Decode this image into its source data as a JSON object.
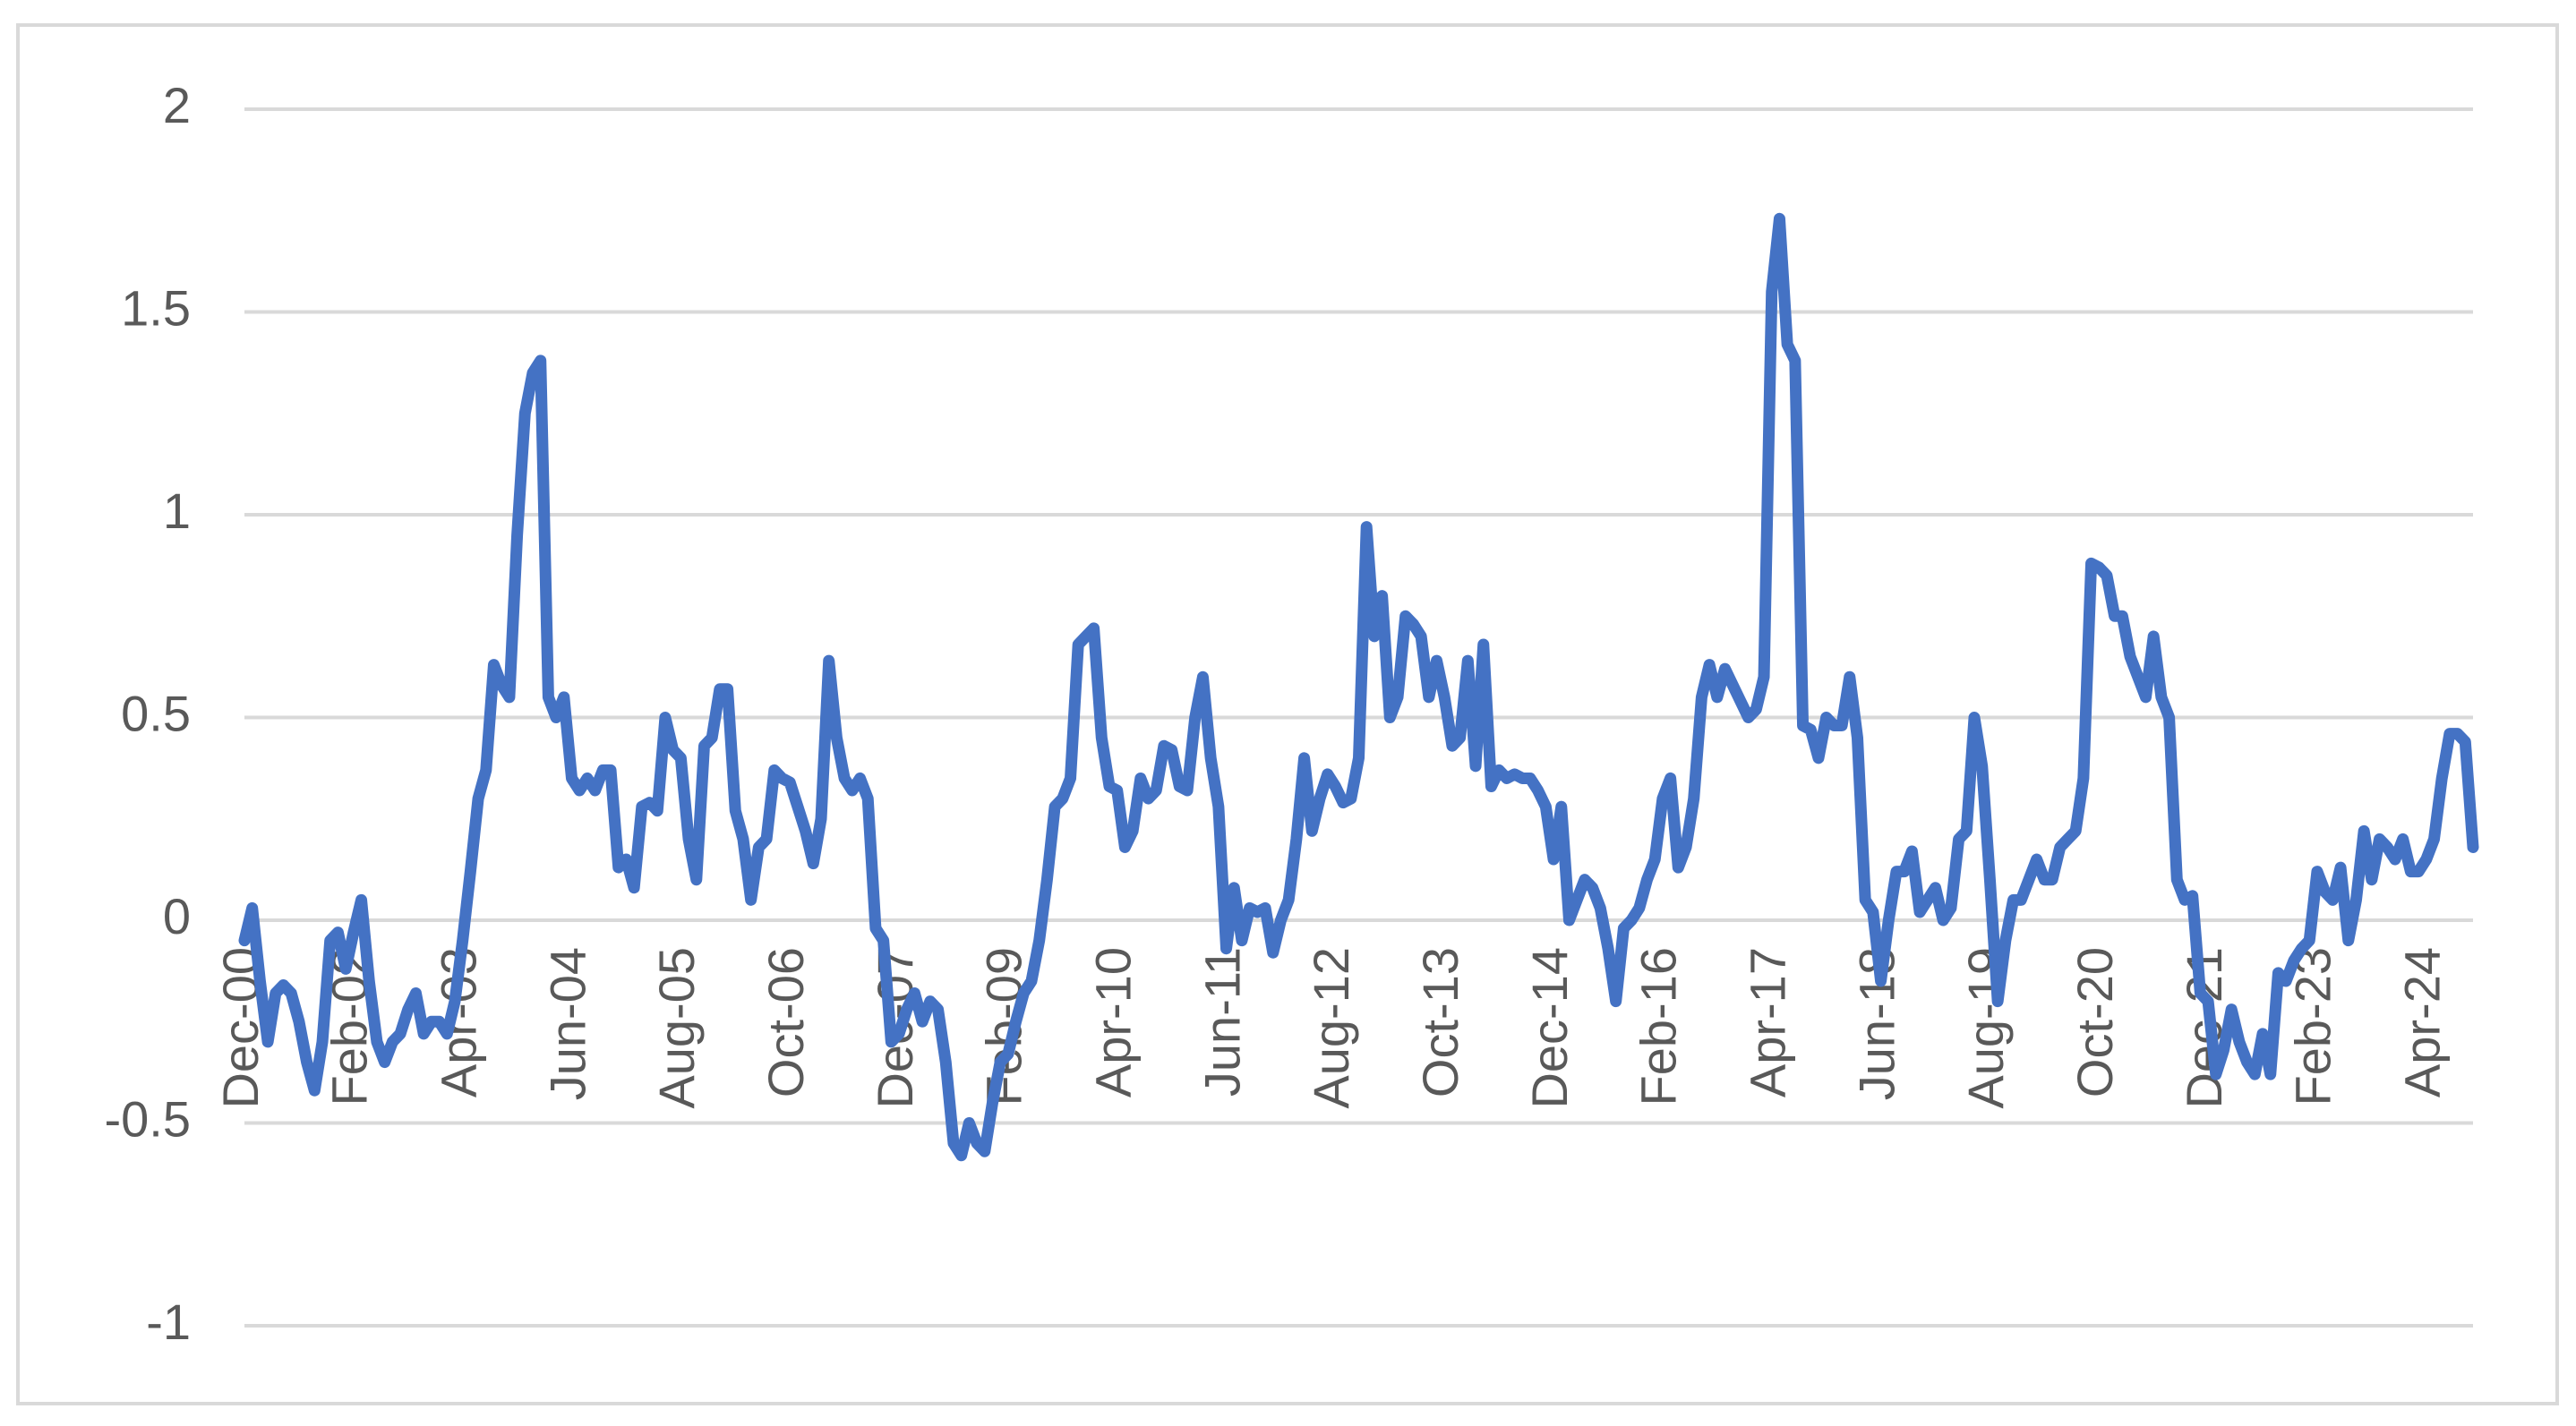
{
  "chart_data": {
    "type": "line",
    "categories": [
      "Dec-00",
      null,
      null,
      null,
      null,
      null,
      null,
      null,
      null,
      null,
      null,
      null,
      null,
      null,
      "Feb-02",
      null,
      null,
      null,
      null,
      null,
      null,
      null,
      null,
      null,
      null,
      null,
      null,
      null,
      "Apr-03",
      null,
      null,
      null,
      null,
      null,
      null,
      null,
      null,
      null,
      null,
      null,
      null,
      null,
      "Jun-04",
      null,
      null,
      null,
      null,
      null,
      null,
      null,
      null,
      null,
      null,
      null,
      null,
      null,
      "Aug-05",
      null,
      null,
      null,
      null,
      null,
      null,
      null,
      null,
      null,
      null,
      null,
      null,
      null,
      "Oct-06",
      null,
      null,
      null,
      null,
      null,
      null,
      null,
      null,
      null,
      null,
      null,
      null,
      null,
      "Dec-07",
      null,
      null,
      null,
      null,
      null,
      null,
      null,
      null,
      null,
      null,
      null,
      null,
      null,
      "Feb-09",
      null,
      null,
      null,
      null,
      null,
      null,
      null,
      null,
      null,
      null,
      null,
      null,
      null,
      "Apr-10",
      null,
      null,
      null,
      null,
      null,
      null,
      null,
      null,
      null,
      null,
      null,
      null,
      null,
      "Jun-11",
      null,
      null,
      null,
      null,
      null,
      null,
      null,
      null,
      null,
      null,
      null,
      null,
      null,
      "Aug-12",
      null,
      null,
      null,
      null,
      null,
      null,
      null,
      null,
      null,
      null,
      null,
      null,
      null,
      "Oct-13",
      null,
      null,
      null,
      null,
      null,
      null,
      null,
      null,
      null,
      null,
      null,
      null,
      null,
      "Dec-14",
      null,
      null,
      null,
      null,
      null,
      null,
      null,
      null,
      null,
      null,
      null,
      null,
      null,
      "Feb-16",
      null,
      null,
      null,
      null,
      null,
      null,
      null,
      null,
      null,
      null,
      null,
      null,
      null,
      "Apr-17",
      null,
      null,
      null,
      null,
      null,
      null,
      null,
      null,
      null,
      null,
      null,
      null,
      null,
      "Jun-18",
      null,
      null,
      null,
      null,
      null,
      null,
      null,
      null,
      null,
      null,
      null,
      null,
      null,
      "Aug-19",
      null,
      null,
      null,
      null,
      null,
      null,
      null,
      null,
      null,
      null,
      null,
      null,
      null,
      "Oct-20",
      null,
      null,
      null,
      null,
      null,
      null,
      null,
      null,
      null,
      null,
      null,
      null,
      null,
      "Dec-21",
      null,
      null,
      null,
      null,
      null,
      null,
      null,
      null,
      null,
      null,
      null,
      null,
      null,
      "Feb-23",
      null,
      null,
      null,
      null,
      null,
      null,
      null,
      null,
      null,
      null,
      null,
      null,
      null,
      "Apr-24",
      null,
      null,
      null,
      null,
      null,
      null
    ],
    "values": [
      -0.05,
      0.03,
      -0.15,
      -0.3,
      -0.18,
      -0.16,
      -0.18,
      -0.25,
      -0.35,
      -0.42,
      -0.3,
      -0.05,
      -0.03,
      -0.12,
      -0.03,
      0.05,
      -0.15,
      -0.3,
      -0.35,
      -0.3,
      -0.28,
      -0.22,
      -0.18,
      -0.28,
      -0.25,
      -0.25,
      -0.28,
      -0.2,
      -0.05,
      0.12,
      0.3,
      0.37,
      0.63,
      0.58,
      0.55,
      0.95,
      1.25,
      1.35,
      1.38,
      0.55,
      0.5,
      0.55,
      0.35,
      0.32,
      0.35,
      0.32,
      0.37,
      0.37,
      0.13,
      0.15,
      0.08,
      0.28,
      0.29,
      0.27,
      0.5,
      0.42,
      0.4,
      0.2,
      0.1,
      0.43,
      0.45,
      0.57,
      0.57,
      0.27,
      0.2,
      0.05,
      0.18,
      0.2,
      0.37,
      0.35,
      0.34,
      0.28,
      0.22,
      0.14,
      0.25,
      0.64,
      0.45,
      0.35,
      0.32,
      0.35,
      0.3,
      -0.02,
      -0.05,
      -0.3,
      -0.28,
      -0.22,
      -0.18,
      -0.25,
      -0.2,
      -0.22,
      -0.35,
      -0.55,
      -0.58,
      -0.5,
      -0.55,
      -0.57,
      -0.45,
      -0.35,
      -0.33,
      -0.25,
      -0.18,
      -0.15,
      -0.05,
      0.1,
      0.28,
      0.3,
      0.35,
      0.68,
      0.7,
      0.72,
      0.45,
      0.33,
      0.32,
      0.18,
      0.22,
      0.35,
      0.3,
      0.32,
      0.43,
      0.42,
      0.33,
      0.32,
      0.5,
      0.6,
      0.4,
      0.28,
      -0.07,
      0.08,
      -0.05,
      0.03,
      0.02,
      0.03,
      -0.08,
      0.0,
      0.05,
      0.2,
      0.4,
      0.22,
      0.3,
      0.36,
      0.33,
      0.29,
      0.3,
      0.4,
      0.97,
      0.7,
      0.8,
      0.5,
      0.55,
      0.75,
      0.73,
      0.7,
      0.55,
      0.64,
      0.55,
      0.43,
      0.45,
      0.64,
      0.38,
      0.68,
      0.33,
      0.37,
      0.35,
      0.36,
      0.35,
      0.35,
      0.32,
      0.28,
      0.15,
      0.28,
      0.0,
      0.05,
      0.1,
      0.08,
      0.03,
      -0.07,
      -0.2,
      -0.02,
      0.0,
      0.03,
      0.1,
      0.15,
      0.3,
      0.35,
      0.13,
      0.18,
      0.3,
      0.55,
      0.63,
      0.55,
      0.62,
      0.58,
      0.54,
      0.5,
      0.52,
      0.6,
      1.55,
      1.73,
      1.42,
      1.38,
      0.48,
      0.47,
      0.4,
      0.5,
      0.48,
      0.48,
      0.6,
      0.45,
      0.05,
      0.02,
      -0.15,
      0.0,
      0.12,
      0.12,
      0.17,
      0.02,
      0.05,
      0.08,
      0.0,
      0.03,
      0.2,
      0.22,
      0.5,
      0.38,
      0.1,
      -0.2,
      -0.05,
      0.05,
      0.05,
      0.1,
      0.15,
      0.1,
      0.1,
      0.18,
      0.2,
      0.22,
      0.35,
      0.88,
      0.87,
      0.85,
      0.75,
      0.75,
      0.65,
      0.6,
      0.55,
      0.7,
      0.55,
      0.5,
      0.1,
      0.05,
      0.06,
      -0.18,
      -0.2,
      -0.38,
      -0.32,
      -0.22,
      -0.3,
      -0.35,
      -0.38,
      -0.28,
      -0.38,
      -0.13,
      -0.15,
      -0.1,
      -0.07,
      -0.05,
      0.12,
      0.07,
      0.05,
      0.13,
      -0.05,
      0.05,
      0.22,
      0.1,
      0.2,
      0.18,
      0.15,
      0.2,
      0.12,
      0.12,
      0.15,
      0.2,
      0.35,
      0.46,
      0.46,
      0.44,
      0.18
    ],
    "color": "#4472c4",
    "ylim": [
      -1,
      2
    ],
    "yticks": [
      -1,
      -0.5,
      0,
      0.5,
      1,
      1.5,
      2
    ],
    "grid": true
  }
}
